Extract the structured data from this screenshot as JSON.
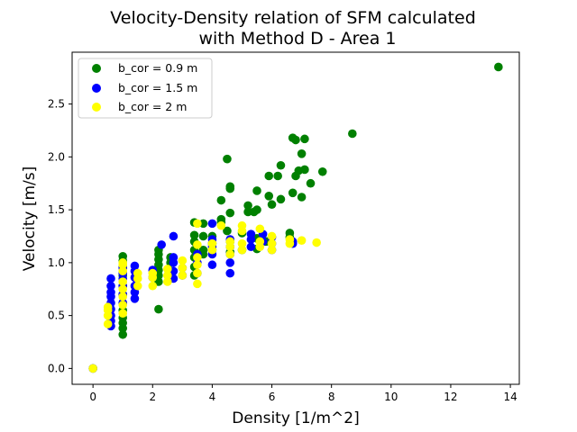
{
  "chart_data": {
    "type": "scatter",
    "title_lines": [
      "Velocity-Density relation of SFM calculated",
      "with Method D - Area 1"
    ],
    "xlabel": "Density [1/m^2]",
    "ylabel": "Velocity [m/s]",
    "xlim": [
      -0.7,
      14.3
    ],
    "ylim": [
      -0.15,
      2.99
    ],
    "xticks": [
      0,
      2,
      4,
      6,
      8,
      10,
      12,
      14
    ],
    "yticks": [
      0.0,
      0.5,
      1.0,
      1.5,
      2.0,
      2.5
    ],
    "xtick_labels": [
      "0",
      "2",
      "4",
      "6",
      "8",
      "10",
      "12",
      "14"
    ],
    "ytick_labels": [
      "0.0",
      "0.5",
      "1.0",
      "1.5",
      "2.0",
      "2.5"
    ],
    "legend_position": "top-left",
    "series": [
      {
        "name": "b_cor = 0.9 m",
        "color": "#008000",
        "points": [
          [
            0,
            0
          ],
          [
            1.0,
            0.32
          ],
          [
            1.0,
            0.38
          ],
          [
            1.0,
            0.43
          ],
          [
            1.0,
            0.48
          ],
          [
            1.0,
            0.55
          ],
          [
            1.0,
            0.62
          ],
          [
            1.0,
            0.7
          ],
          [
            1.0,
            0.78
          ],
          [
            1.0,
            0.88
          ],
          [
            1.0,
            0.96
          ],
          [
            1.0,
            1.02
          ],
          [
            1.0,
            1.06
          ],
          [
            2.2,
            0.56
          ],
          [
            2.2,
            0.82
          ],
          [
            2.2,
            0.88
          ],
          [
            2.2,
            0.93
          ],
          [
            2.2,
            0.98
          ],
          [
            2.2,
            1.03
          ],
          [
            2.2,
            1.08
          ],
          [
            2.2,
            1.12
          ],
          [
            2.6,
            0.86
          ],
          [
            2.6,
            0.92
          ],
          [
            2.6,
            1.0
          ],
          [
            2.6,
            1.05
          ],
          [
            3.4,
            0.88
          ],
          [
            3.4,
            0.96
          ],
          [
            3.4,
            1.05
          ],
          [
            3.4,
            1.12
          ],
          [
            3.4,
            1.2
          ],
          [
            3.4,
            1.26
          ],
          [
            3.4,
            1.38
          ],
          [
            3.7,
            1.08
          ],
          [
            3.7,
            1.12
          ],
          [
            3.7,
            1.25
          ],
          [
            3.7,
            1.37
          ],
          [
            4.0,
            1.12
          ],
          [
            4.0,
            1.18
          ],
          [
            4.0,
            1.25
          ],
          [
            4.3,
            1.38
          ],
          [
            4.3,
            1.41
          ],
          [
            4.3,
            1.59
          ],
          [
            4.5,
            1.3
          ],
          [
            4.5,
            1.98
          ],
          [
            4.6,
            1.1
          ],
          [
            4.6,
            1.2
          ],
          [
            4.6,
            1.47
          ],
          [
            4.6,
            1.7
          ],
          [
            4.6,
            1.72
          ],
          [
            5.0,
            1.12
          ],
          [
            5.0,
            1.28
          ],
          [
            5.2,
            1.48
          ],
          [
            5.2,
            1.54
          ],
          [
            5.4,
            1.48
          ],
          [
            5.5,
            1.13
          ],
          [
            5.5,
            1.23
          ],
          [
            5.5,
            1.5
          ],
          [
            5.5,
            1.68
          ],
          [
            5.8,
            1.2
          ],
          [
            5.9,
            1.63
          ],
          [
            5.9,
            1.82
          ],
          [
            6.0,
            1.55
          ],
          [
            6.2,
            1.82
          ],
          [
            6.3,
            1.6
          ],
          [
            6.3,
            1.92
          ],
          [
            6.6,
            1.24
          ],
          [
            6.6,
            1.28
          ],
          [
            6.7,
            1.66
          ],
          [
            6.7,
            2.18
          ],
          [
            6.8,
            1.82
          ],
          [
            6.8,
            2.16
          ],
          [
            6.9,
            1.87
          ],
          [
            7.0,
            1.62
          ],
          [
            7.0,
            2.03
          ],
          [
            7.1,
            1.88
          ],
          [
            7.1,
            2.17
          ],
          [
            7.3,
            1.75
          ],
          [
            7.7,
            1.86
          ],
          [
            8.7,
            2.22
          ],
          [
            13.6,
            2.85
          ]
        ]
      },
      {
        "name": "b_cor = 1.5 m",
        "color": "#0000ff",
        "points": [
          [
            0,
            0
          ],
          [
            0.6,
            0.4
          ],
          [
            0.6,
            0.45
          ],
          [
            0.6,
            0.5
          ],
          [
            0.6,
            0.56
          ],
          [
            0.6,
            0.62
          ],
          [
            0.6,
            0.68
          ],
          [
            0.6,
            0.72
          ],
          [
            0.6,
            0.78
          ],
          [
            0.6,
            0.85
          ],
          [
            1.0,
            0.62
          ],
          [
            1.0,
            0.7
          ],
          [
            1.0,
            0.78
          ],
          [
            1.0,
            0.85
          ],
          [
            1.0,
            0.9
          ],
          [
            1.0,
            0.95
          ],
          [
            1.4,
            0.66
          ],
          [
            1.4,
            0.72
          ],
          [
            1.4,
            0.78
          ],
          [
            1.4,
            0.86
          ],
          [
            1.4,
            0.92
          ],
          [
            1.4,
            0.97
          ],
          [
            2.0,
            0.86
          ],
          [
            2.0,
            0.93
          ],
          [
            2.3,
            1.17
          ],
          [
            2.7,
            0.85
          ],
          [
            2.7,
            0.92
          ],
          [
            2.7,
            1.0
          ],
          [
            2.7,
            1.05
          ],
          [
            2.7,
            1.25
          ],
          [
            3.0,
            0.88
          ],
          [
            3.0,
            0.95
          ],
          [
            3.5,
            0.9
          ],
          [
            3.5,
            1.0
          ],
          [
            3.5,
            1.08
          ],
          [
            4.0,
            0.98
          ],
          [
            4.0,
            1.08
          ],
          [
            4.0,
            1.15
          ],
          [
            4.0,
            1.22
          ],
          [
            4.0,
            1.37
          ],
          [
            4.6,
            0.9
          ],
          [
            4.6,
            1.0
          ],
          [
            4.6,
            1.08
          ],
          [
            4.6,
            1.15
          ],
          [
            4.6,
            1.22
          ],
          [
            5.3,
            1.15
          ],
          [
            5.3,
            1.22
          ],
          [
            5.3,
            1.27
          ],
          [
            5.7,
            1.2
          ],
          [
            5.7,
            1.27
          ],
          [
            6.0,
            1.12
          ],
          [
            6.0,
            1.18
          ],
          [
            6.0,
            1.24
          ],
          [
            6.7,
            1.18
          ],
          [
            6.7,
            1.2
          ]
        ]
      },
      {
        "name": "b_cor = 2 m",
        "color": "#ffff00",
        "points": [
          [
            0,
            0
          ],
          [
            0.5,
            0.42
          ],
          [
            0.5,
            0.5
          ],
          [
            0.5,
            0.55
          ],
          [
            0.5,
            0.58
          ],
          [
            1.0,
            0.52
          ],
          [
            1.0,
            0.6
          ],
          [
            1.0,
            0.68
          ],
          [
            1.0,
            0.75
          ],
          [
            1.0,
            0.82
          ],
          [
            1.0,
            0.92
          ],
          [
            1.0,
            0.98
          ],
          [
            1.0,
            1.0
          ],
          [
            1.5,
            0.78
          ],
          [
            1.5,
            0.85
          ],
          [
            1.5,
            0.9
          ],
          [
            2.0,
            0.78
          ],
          [
            2.0,
            0.86
          ],
          [
            2.0,
            0.9
          ],
          [
            2.5,
            0.82
          ],
          [
            2.5,
            0.88
          ],
          [
            2.5,
            0.94
          ],
          [
            3.0,
            0.88
          ],
          [
            3.0,
            0.95
          ],
          [
            3.0,
            1.02
          ],
          [
            3.5,
            0.8
          ],
          [
            3.5,
            0.9
          ],
          [
            3.5,
            0.98
          ],
          [
            3.5,
            1.05
          ],
          [
            3.5,
            1.17
          ],
          [
            3.5,
            1.37
          ],
          [
            4.0,
            1.12
          ],
          [
            4.0,
            1.18
          ],
          [
            4.3,
            1.35
          ],
          [
            4.6,
            1.08
          ],
          [
            4.6,
            1.15
          ],
          [
            4.6,
            1.2
          ],
          [
            5.0,
            1.12
          ],
          [
            5.0,
            1.18
          ],
          [
            5.0,
            1.3
          ],
          [
            5.0,
            1.35
          ],
          [
            5.6,
            1.15
          ],
          [
            5.6,
            1.2
          ],
          [
            5.6,
            1.32
          ],
          [
            6.0,
            1.12
          ],
          [
            6.0,
            1.18
          ],
          [
            6.0,
            1.25
          ],
          [
            6.6,
            1.18
          ],
          [
            6.6,
            1.22
          ],
          [
            7.0,
            1.21
          ],
          [
            7.5,
            1.19
          ]
        ]
      }
    ]
  }
}
